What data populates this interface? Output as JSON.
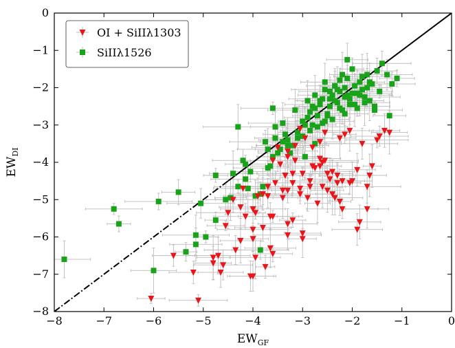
{
  "chart_data": {
    "type": "scatter",
    "title": "",
    "xlabel": "EW",
    "xlabel_sub": "GF",
    "ylabel": "EW",
    "ylabel_sub": "DI",
    "xlim": [
      -8,
      0
    ],
    "ylim": [
      -8,
      0
    ],
    "xticks": [
      -8,
      -7,
      -6,
      -5,
      -4,
      -3,
      -2,
      -1,
      0
    ],
    "yticks": [
      0,
      -1,
      -2,
      -3,
      -4,
      -5,
      -6,
      -7,
      -8
    ],
    "xtick_labels": [
      "−8",
      "−7",
      "−6",
      "−5",
      "−4",
      "−3",
      "−2",
      "−1",
      "0"
    ],
    "ytick_labels": [
      "0",
      "−1",
      "−2",
      "−3",
      "−4",
      "−5",
      "−6",
      "−7",
      "−8"
    ],
    "grid": false,
    "legend_position": "top-left",
    "reference_line": {
      "from": [
        -8,
        -8
      ],
      "to": [
        0,
        0
      ],
      "style": "black, solid above x=-4.5, dash-dot below"
    },
    "colors": {
      "red": "#e8161b",
      "green": "#1aa31a",
      "errorbar": "#bdbdbd",
      "line": "#000000"
    },
    "series": [
      {
        "name": "OI + SiIIλ1303",
        "marker": "triangle-down",
        "color": "#e8161b",
        "x": [
          -6.05,
          -5.1,
          -5.2,
          -5.6,
          -4.8,
          -4.35,
          -4.6,
          -4.65,
          -4.05,
          -4.0,
          -3.75,
          -3.95,
          -3.65,
          -3.6,
          -4.7,
          -4.8,
          -4.25,
          -4.0,
          -4.0,
          -3.8,
          -4.0,
          -3.65,
          -3.95,
          -3.6,
          -3.7,
          -3.4,
          -3.3,
          -3.2,
          -3.3,
          -3.0,
          -3.0,
          -3.8,
          -3.4,
          -3.55,
          -3.7,
          -3.9,
          -3.35,
          -3.2,
          -3.2,
          -3.3,
          -3.05,
          -2.85,
          -3.0,
          -3.45,
          -3.6,
          -3.3,
          -2.8,
          -2.75,
          -2.65,
          -2.6,
          -2.55,
          -2.4,
          -2.3,
          -2.2,
          -2.05,
          -1.7,
          -1.65,
          -1.9,
          -2.5,
          -2.45,
          -2.6,
          -2.4,
          -2.9,
          -3.05,
          -2.7,
          -2.35,
          -2.25,
          -2.2,
          -2.3,
          -2.0,
          -1.9,
          -1.85,
          -1.7,
          -1.6,
          -1.45,
          -1.25,
          -1.35,
          -1.5,
          -1.8,
          -2.25,
          -2.15,
          -2.05,
          -2.95,
          -3.15,
          -3.3,
          -3.5,
          -3.15,
          -2.8,
          -2.65,
          -2.55,
          -3.05,
          -3.35,
          -3.9,
          -4.2,
          -4.4,
          -4.5,
          -4.55,
          -4.15,
          -4.25,
          -2.5,
          -2.85,
          -2.65
        ],
        "y": [
          -7.65,
          -7.7,
          -6.95,
          -6.5,
          -6.55,
          -6.35,
          -6.75,
          -6.95,
          -7.05,
          -7.05,
          -6.8,
          -6.55,
          -6.3,
          -6.45,
          -6.5,
          -6.7,
          -6.1,
          -6.05,
          -5.8,
          -5.75,
          -5.25,
          -5.45,
          -5.35,
          -5.45,
          -4.9,
          -4.95,
          -5.65,
          -5.55,
          -5.95,
          -6.05,
          -5.9,
          -4.85,
          -4.75,
          -4.55,
          -4.65,
          -4.9,
          -4.35,
          -4.3,
          -4.55,
          -4.75,
          -4.7,
          -4.65,
          -4.3,
          -4.05,
          -3.95,
          -3.85,
          -4.1,
          -4.15,
          -3.9,
          -4.0,
          -3.95,
          -4.25,
          -4.35,
          -4.5,
          -4.55,
          -4.65,
          -4.35,
          -4.2,
          -4.3,
          -4.45,
          -4.65,
          -4.85,
          -4.95,
          -4.85,
          -5.1,
          -4.95,
          -5.05,
          -5.25,
          -4.55,
          -4.5,
          -5.8,
          -5.6,
          -5.25,
          -4.1,
          -3.3,
          -3.2,
          -3.15,
          -3.4,
          -3.5,
          -3.35,
          -3.25,
          -3.15,
          -3.35,
          -3.55,
          -3.7,
          -3.6,
          -3.95,
          -3.6,
          -3.45,
          -3.2,
          -3.1,
          -4.35,
          -4.9,
          -4.7,
          -5.0,
          -5.35,
          -5.7,
          -5.45,
          -5.2,
          -4.75,
          -4.5,
          -4.1
        ]
      },
      {
        "name": "SiIIλ1526",
        "marker": "square",
        "color": "#1aa31a",
        "x": [
          -7.8,
          -6.0,
          -5.9,
          -6.8,
          -6.7,
          -5.5,
          -5.15,
          -5.15,
          -5.05,
          -5.35,
          -4.95,
          -4.75,
          -4.55,
          -4.45,
          -4.4,
          -4.3,
          -4.15,
          -4.05,
          -4.1,
          -3.95,
          -3.85,
          -3.8,
          -3.75,
          -3.7,
          -3.6,
          -3.55,
          -3.5,
          -3.4,
          -3.35,
          -3.3,
          -3.6,
          -3.45,
          -3.1,
          -3.0,
          -2.95,
          -2.9,
          -2.85,
          -2.8,
          -2.75,
          -2.7,
          -2.65,
          -2.6,
          -2.55,
          -2.5,
          -2.45,
          -2.4,
          -2.35,
          -2.3,
          -2.25,
          -2.2,
          -2.15,
          -2.1,
          -2.05,
          -2.0,
          -1.95,
          -1.9,
          -1.85,
          -1.8,
          -1.75,
          -1.7,
          -1.65,
          -1.6,
          -1.55,
          -1.5,
          -1.45,
          -1.4,
          -1.3,
          -1.25,
          -1.2,
          -1.1,
          -2.1,
          -2.2,
          -2.3,
          -2.4,
          -2.5,
          -2.6,
          -2.7,
          -2.8,
          -2.9,
          -3.0,
          -3.1,
          -3.2,
          -2.15,
          -2.25,
          -2.35,
          -2.45,
          -2.55,
          -2.65,
          -2.75,
          -2.85,
          -1.95,
          -1.85,
          -1.75,
          -1.65,
          -1.55,
          -2.05,
          -2.15,
          -2.25,
          -2.35,
          -2.45,
          -2.55,
          -1.9,
          -1.8,
          -1.7,
          -3.55,
          -3.3,
          -3.15,
          -2.0,
          -4.3,
          -3.7,
          -2.75,
          -2.95,
          -3.25,
          -4.75,
          -3.85,
          -2.1,
          -3.4,
          -3.65,
          -4.2,
          -4.15
        ],
        "y": [
          -6.6,
          -6.9,
          -5.05,
          -5.25,
          -5.65,
          -4.8,
          -5.95,
          -6.2,
          -5.1,
          -6.4,
          -6.0,
          -5.55,
          -5.0,
          -4.95,
          -4.3,
          -4.65,
          -4.05,
          -4.25,
          -4.7,
          -4.9,
          -4.85,
          -4.65,
          -3.45,
          -3.65,
          -2.55,
          -3.05,
          -3.75,
          -3.45,
          -3.25,
          -3.4,
          -3.85,
          -3.65,
          -3.2,
          -3.3,
          -3.0,
          -2.8,
          -3.15,
          -3.0,
          -2.55,
          -2.75,
          -2.45,
          -2.3,
          -2.9,
          -2.7,
          -2.5,
          -2.2,
          -1.95,
          -2.4,
          -2.1,
          -2.6,
          -2.0,
          -1.75,
          -2.3,
          -2.15,
          -2.45,
          -2.55,
          -1.85,
          -2.05,
          -2.25,
          -1.65,
          -2.35,
          -1.9,
          -2.6,
          -1.55,
          -2.1,
          -1.35,
          -1.65,
          -2.75,
          -1.9,
          -1.75,
          -1.25,
          -1.65,
          -2.05,
          -2.85,
          -2.75,
          -2.95,
          -3.05,
          -2.5,
          -2.35,
          -2.9,
          -3.35,
          -3.55,
          -2.25,
          -2.55,
          -2.35,
          -2.1,
          -2.05,
          -2.35,
          -2.2,
          -2.65,
          -1.95,
          -2.2,
          -2.4,
          -1.85,
          -2.5,
          -2.45,
          -2.7,
          -1.8,
          -1.95,
          -2.3,
          -1.85,
          -2.15,
          -1.7,
          -2.0,
          -3.35,
          -3.55,
          -2.6,
          -1.5,
          -3.05,
          -4.15,
          -3.5,
          -3.85,
          -3.75,
          -4.35,
          -6.35,
          -2.2,
          -2.95,
          -4.1,
          -3.95,
          -4.45
        ]
      }
    ]
  }
}
